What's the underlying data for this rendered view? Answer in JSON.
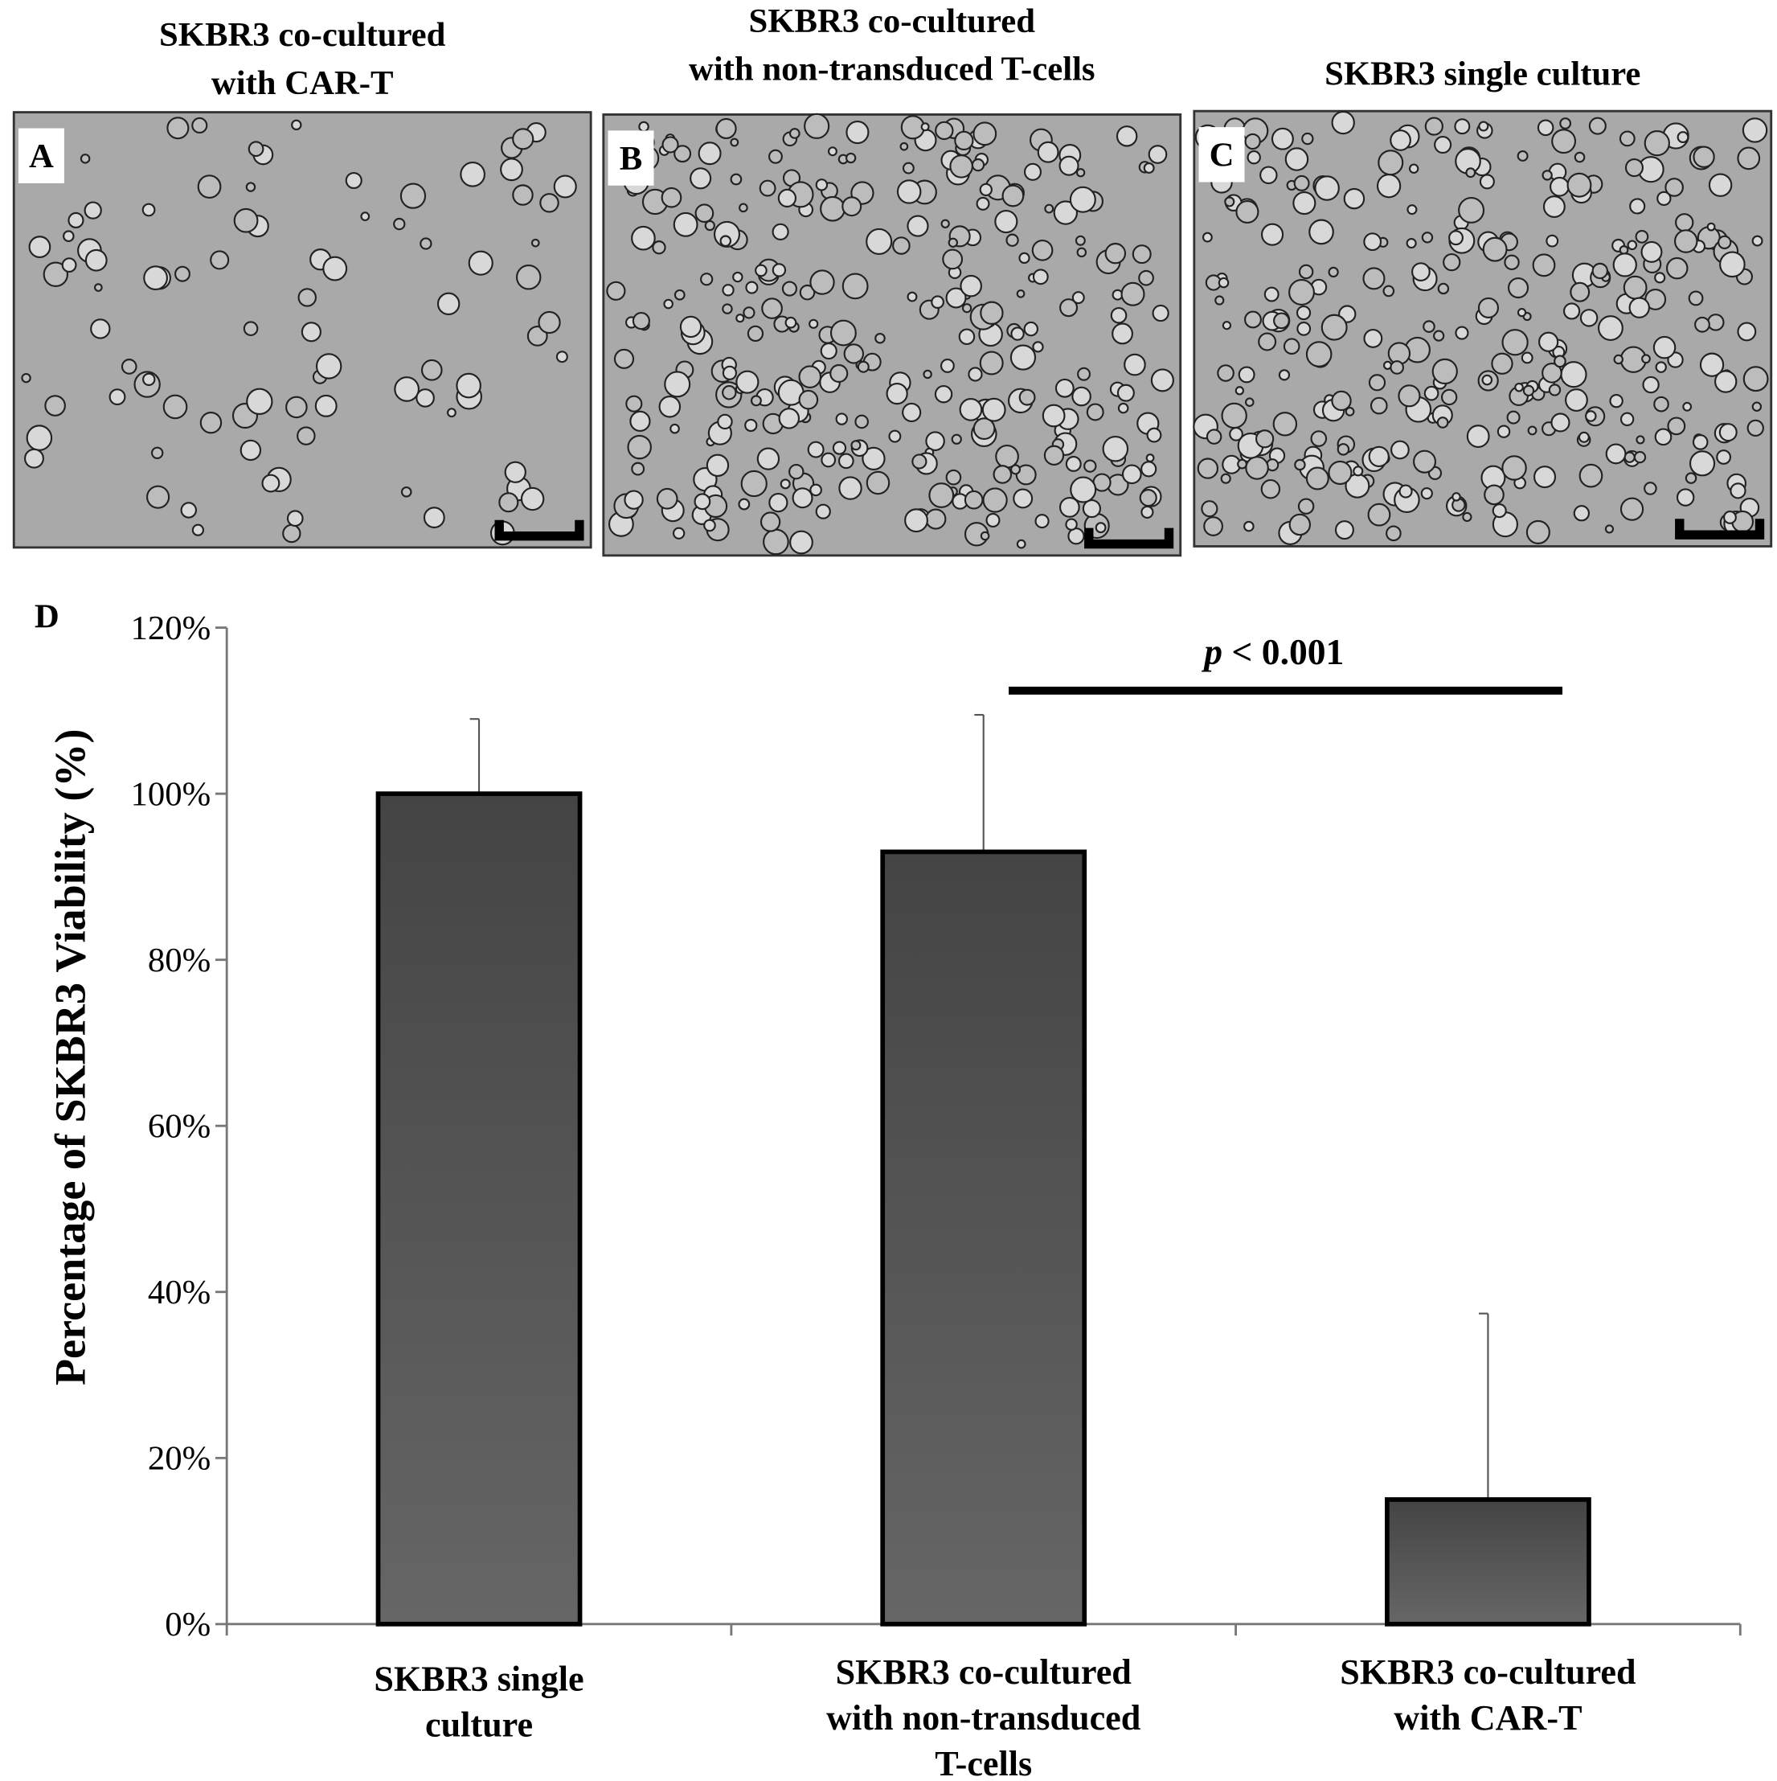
{
  "panels": [
    {
      "label": "A",
      "title": [
        "SKBR3 co-cultured",
        "with CAR-T"
      ]
    },
    {
      "label": "B",
      "title": [
        "SKBR3 co-cultured",
        "with non-transduced T-cells"
      ]
    },
    {
      "label": "C",
      "title": [
        "SKBR3 single culture"
      ]
    }
  ],
  "chart_data": {
    "type": "bar",
    "panel_label": "D",
    "y_label": "Percentage of SKBR3 Viability (%)",
    "categories": [
      [
        "SKBR3 single",
        "culture"
      ],
      [
        "SKBR3 co-cultured",
        "with non-transduced",
        "T-cells"
      ],
      [
        "SKBR3 co-cultured",
        "with CAR-T"
      ]
    ],
    "values": [
      100,
      93,
      15
    ],
    "errors": [
      9,
      16.5,
      22.4
    ],
    "color": "#555555",
    "ylim": [
      0,
      120
    ],
    "yticks": [
      {
        "value": 0,
        "label": "0%"
      },
      {
        "value": 20,
        "label": "20%"
      },
      {
        "value": 40,
        "label": "40%"
      },
      {
        "value": 60,
        "label": "60%"
      },
      {
        "value": 80,
        "label": "80%"
      },
      {
        "value": 100,
        "label": "100%"
      },
      {
        "value": 120,
        "label": "120%"
      }
    ],
    "significance": [
      "p",
      "< 0.001"
    ]
  }
}
